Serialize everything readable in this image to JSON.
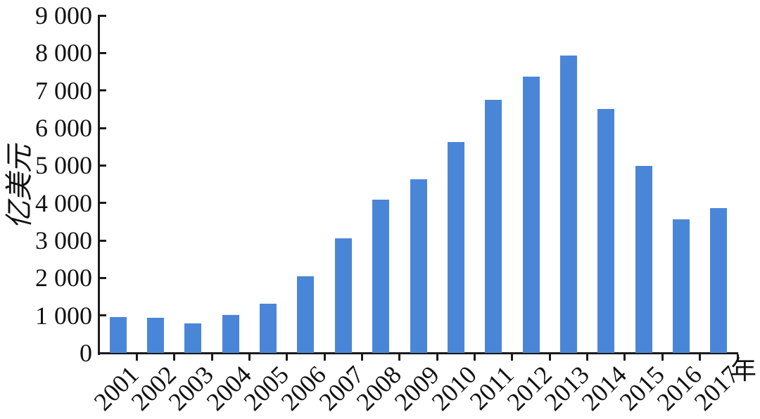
{
  "chart_data": {
    "type": "bar",
    "title": "",
    "categories": [
      "2001",
      "2002",
      "2003",
      "2004",
      "2005",
      "2006",
      "2007",
      "2008",
      "2009",
      "2010",
      "2011",
      "2012",
      "2013",
      "2014",
      "2015",
      "2016",
      "2017"
    ],
    "values": [
      950,
      930,
      780,
      1010,
      1310,
      2040,
      3060,
      4090,
      4630,
      5620,
      6750,
      7370,
      7930,
      6510,
      4990,
      3560,
      3870
    ],
    "ylabel": "亿美元",
    "xlabel": "年",
    "ylim": [
      0,
      9000
    ],
    "y_tick_step": 1000,
    "y_tick_labels": [
      "0",
      "1 000",
      "2 000",
      "3 000",
      "4 000",
      "5 000",
      "6 000",
      "7 000",
      "8 000",
      "9 000"
    ],
    "bar_color": "#4a86d8",
    "axis_color": "#1a1a1a",
    "grid": false,
    "legend_position": "none"
  }
}
